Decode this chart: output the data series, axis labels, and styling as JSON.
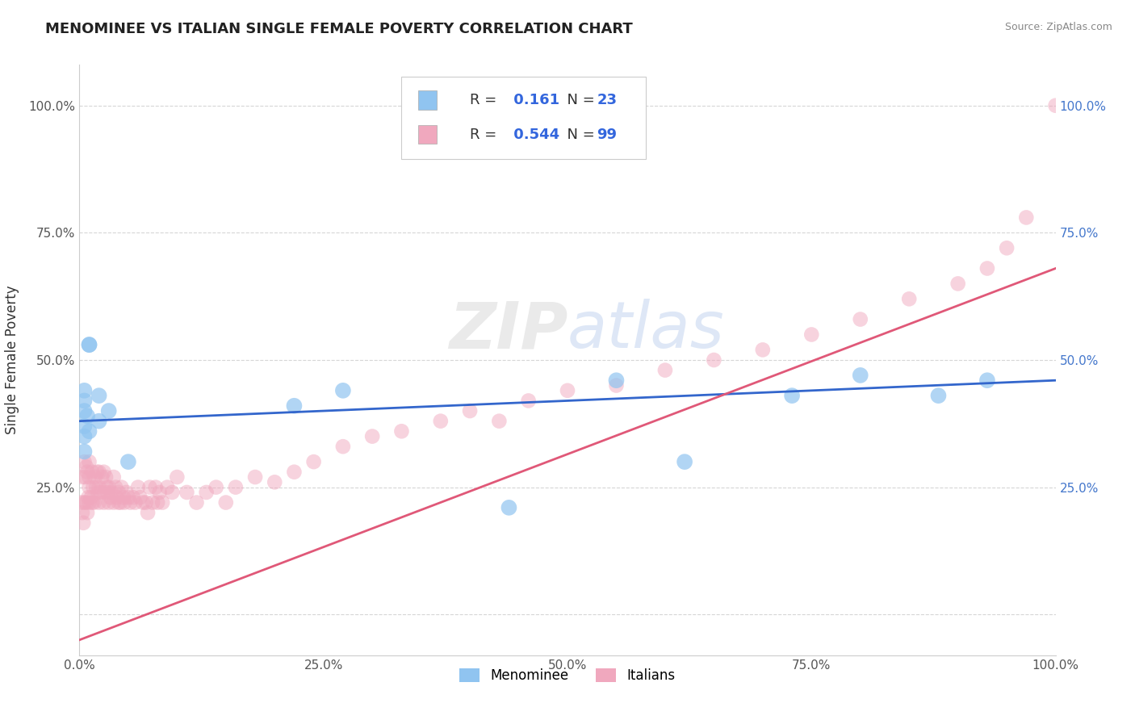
{
  "title": "MENOMINEE VS ITALIAN SINGLE FEMALE POVERTY CORRELATION CHART",
  "source": "Source: ZipAtlas.com",
  "ylabel": "Single Female Poverty",
  "xlim": [
    0,
    1
  ],
  "ylim": [
    -0.08,
    1.08
  ],
  "xticks": [
    0.0,
    0.25,
    0.5,
    0.75,
    1.0
  ],
  "xticklabels": [
    "0.0%",
    "25.0%",
    "50.0%",
    "75.0%",
    "100.0%"
  ],
  "yticks": [
    0.0,
    0.25,
    0.5,
    0.75,
    1.0
  ],
  "yticklabels_left": [
    "",
    "25.0%",
    "50.0%",
    "75.0%",
    "100.0%"
  ],
  "yticklabels_right": [
    "",
    "25.0%",
    "50.0%",
    "75.0%",
    "100.0%"
  ],
  "menominee_R": 0.161,
  "menominee_N": 23,
  "italian_R": 0.544,
  "italian_N": 99,
  "menominee_color": "#90C4F0",
  "italian_color": "#F0A8BE",
  "menominee_line_color": "#3366CC",
  "italian_line_color": "#E05878",
  "watermark_zip": "ZIP",
  "watermark_atlas": "atlas",
  "background_color": "#ffffff",
  "menominee_x": [
    0.005,
    0.01,
    0.01,
    0.005,
    0.005,
    0.005,
    0.005,
    0.005,
    0.008,
    0.01,
    0.02,
    0.02,
    0.03,
    0.05,
    0.22,
    0.27,
    0.44,
    0.55,
    0.62,
    0.73,
    0.8,
    0.88,
    0.93
  ],
  "menominee_y": [
    0.42,
    0.53,
    0.53,
    0.44,
    0.4,
    0.37,
    0.35,
    0.32,
    0.39,
    0.36,
    0.43,
    0.38,
    0.4,
    0.3,
    0.41,
    0.44,
    0.21,
    0.46,
    0.3,
    0.43,
    0.47,
    0.43,
    0.46
  ],
  "italian_x": [
    0.002,
    0.003,
    0.003,
    0.004,
    0.005,
    0.005,
    0.006,
    0.007,
    0.007,
    0.008,
    0.008,
    0.009,
    0.01,
    0.01,
    0.01,
    0.01,
    0.012,
    0.013,
    0.013,
    0.014,
    0.015,
    0.016,
    0.017,
    0.018,
    0.019,
    0.02,
    0.02,
    0.02,
    0.022,
    0.023,
    0.025,
    0.025,
    0.026,
    0.027,
    0.028,
    0.029,
    0.03,
    0.03,
    0.032,
    0.033,
    0.035,
    0.035,
    0.037,
    0.038,
    0.04,
    0.04,
    0.042,
    0.043,
    0.045,
    0.046,
    0.048,
    0.05,
    0.052,
    0.055,
    0.057,
    0.06,
    0.062,
    0.065,
    0.068,
    0.07,
    0.072,
    0.075,
    0.078,
    0.08,
    0.082,
    0.085,
    0.09,
    0.095,
    0.1,
    0.11,
    0.12,
    0.13,
    0.14,
    0.15,
    0.16,
    0.18,
    0.2,
    0.22,
    0.24,
    0.27,
    0.3,
    0.33,
    0.37,
    0.4,
    0.43,
    0.46,
    0.5,
    0.55,
    0.6,
    0.65,
    0.7,
    0.75,
    0.8,
    0.85,
    0.9,
    0.93,
    0.95,
    0.97,
    1.0
  ],
  "italian_y": [
    0.22,
    0.2,
    0.27,
    0.18,
    0.22,
    0.3,
    0.27,
    0.22,
    0.29,
    0.2,
    0.28,
    0.23,
    0.25,
    0.3,
    0.22,
    0.27,
    0.23,
    0.28,
    0.22,
    0.25,
    0.22,
    0.27,
    0.25,
    0.28,
    0.24,
    0.22,
    0.28,
    0.25,
    0.24,
    0.27,
    0.22,
    0.28,
    0.24,
    0.27,
    0.25,
    0.24,
    0.22,
    0.25,
    0.23,
    0.24,
    0.22,
    0.27,
    0.25,
    0.23,
    0.22,
    0.24,
    0.22,
    0.25,
    0.23,
    0.22,
    0.24,
    0.23,
    0.22,
    0.23,
    0.22,
    0.25,
    0.23,
    0.22,
    0.22,
    0.2,
    0.25,
    0.22,
    0.25,
    0.22,
    0.24,
    0.22,
    0.25,
    0.24,
    0.27,
    0.24,
    0.22,
    0.24,
    0.25,
    0.22,
    0.25,
    0.27,
    0.26,
    0.28,
    0.3,
    0.33,
    0.35,
    0.36,
    0.38,
    0.4,
    0.38,
    0.42,
    0.44,
    0.45,
    0.48,
    0.5,
    0.52,
    0.55,
    0.58,
    0.62,
    0.65,
    0.68,
    0.72,
    0.78,
    1.0
  ],
  "menominee_regression": [
    0.38,
    0.46
  ],
  "italian_regression": [
    -0.05,
    0.68
  ]
}
